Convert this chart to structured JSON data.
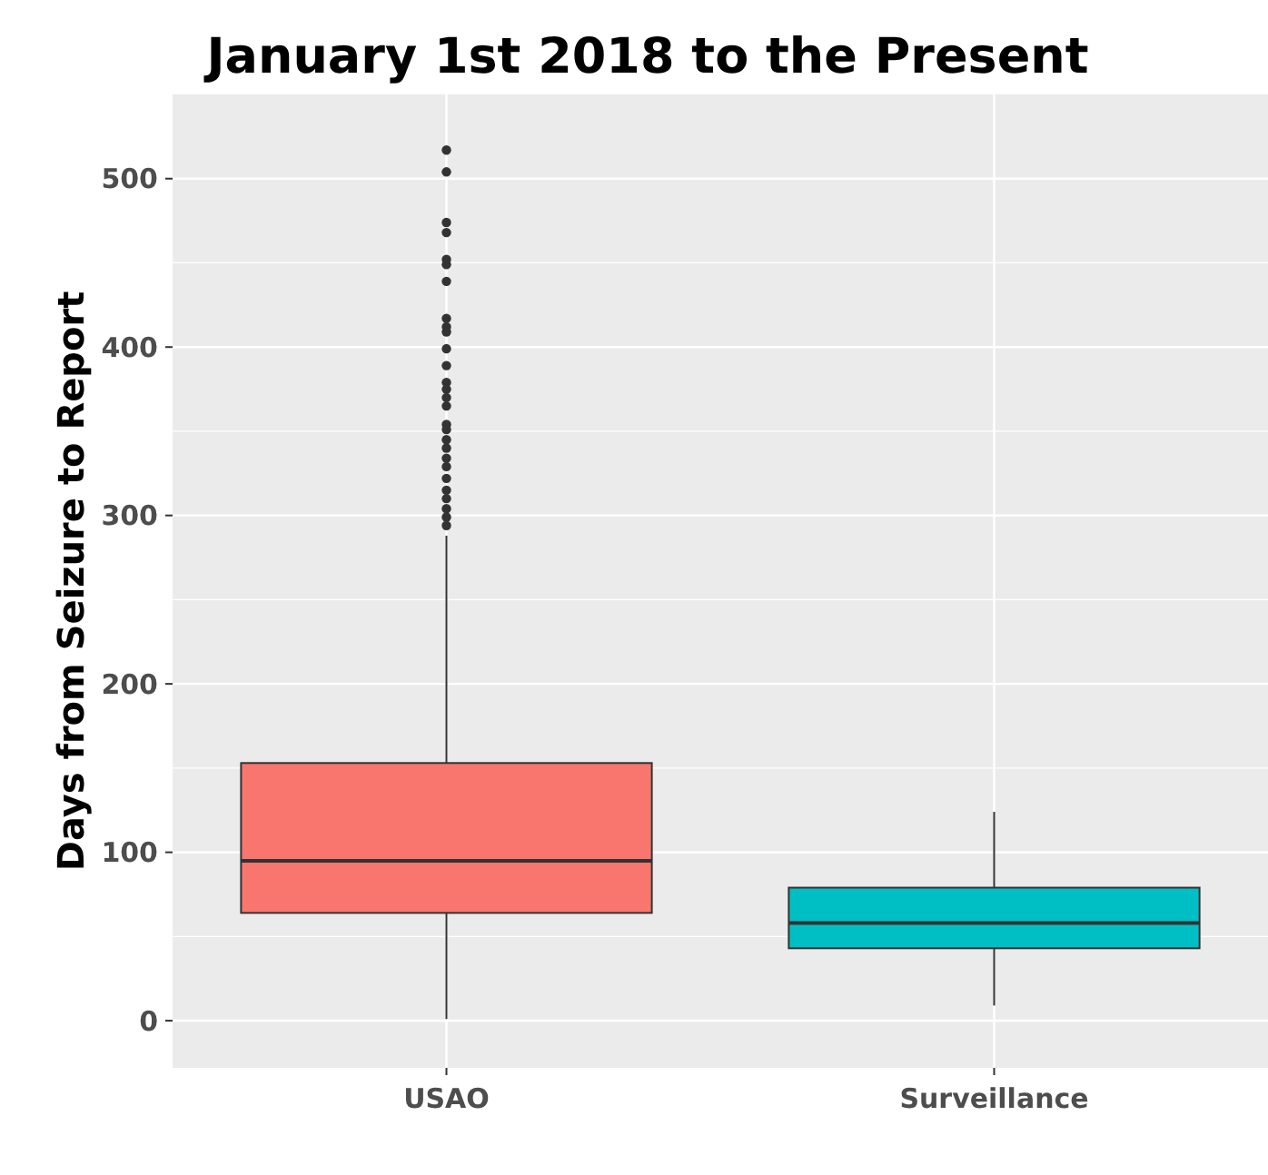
{
  "chart_data": {
    "type": "box",
    "title": "January 1st 2018 to the Present",
    "ylabel": "Days from Seizure to Report",
    "categories": [
      "USAO",
      "Surveillance"
    ],
    "colors": [
      "#f8766d",
      "#00bfc4"
    ],
    "boxes": [
      {
        "low": 1,
        "q1": 64,
        "median": 95,
        "q3": 153,
        "high": 288,
        "outliers": [
          517,
          504,
          474,
          468,
          452,
          449,
          439,
          417,
          412,
          409,
          399,
          389,
          379,
          375,
          370,
          365,
          354,
          351,
          345,
          340,
          334,
          329,
          322,
          315,
          310,
          304,
          299,
          294
        ]
      },
      {
        "low": 9,
        "q1": 43,
        "median": 58,
        "q3": 79,
        "high": 124
      }
    ],
    "ylim": [
      -28,
      550
    ],
    "yticks": [
      0,
      100,
      200,
      300,
      400,
      500
    ],
    "grid": true
  }
}
